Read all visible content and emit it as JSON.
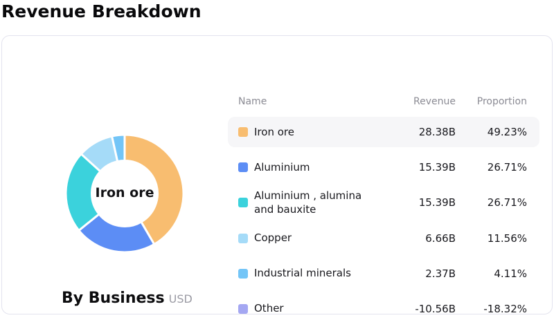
{
  "page": {
    "title": "Revenue Breakdown"
  },
  "card": {
    "center_label": "Iron ore",
    "caption": "By Business",
    "caption_unit": "USD"
  },
  "table": {
    "headers": {
      "name": "Name",
      "revenue": "Revenue",
      "proportion": "Proportion"
    },
    "rows": [
      {
        "name": "Iron ore",
        "revenue": "28.38B",
        "proportion": "49.23%",
        "color": "#F8BD70",
        "highlighted": true
      },
      {
        "name": "Aluminium",
        "revenue": "15.39B",
        "proportion": "26.71%",
        "color": "#5C8DF5",
        "highlighted": false
      },
      {
        "name": "Aluminium , alumina and bauxite",
        "revenue": "15.39B",
        "proportion": "26.71%",
        "color": "#3BD2DC",
        "highlighted": false
      },
      {
        "name": "Copper",
        "revenue": "6.66B",
        "proportion": "11.56%",
        "color": "#A5DBF8",
        "highlighted": false
      },
      {
        "name": "Industrial minerals",
        "revenue": "2.37B",
        "proportion": "4.11%",
        "color": "#73C5F7",
        "highlighted": false
      },
      {
        "name": "Other",
        "revenue": "-10.56B",
        "proportion": "-18.32%",
        "color": "#A4A7F2",
        "highlighted": false
      }
    ]
  },
  "chart_data": {
    "type": "pie",
    "title": "Revenue Breakdown",
    "subtitle": "By Business",
    "unit": "USD",
    "center_label": "Iron ore",
    "categories": [
      "Iron ore",
      "Aluminium",
      "Aluminium , alumina and bauxite",
      "Copper",
      "Industrial minerals",
      "Other"
    ],
    "revenue_billions": [
      28.38,
      15.39,
      15.39,
      6.66,
      2.37,
      -10.56
    ],
    "proportions_pct": [
      49.23,
      26.71,
      26.71,
      11.56,
      4.11,
      -18.32
    ],
    "colors": [
      "#F8BD70",
      "#5C8DF5",
      "#3BD2DC",
      "#A5DBF8",
      "#73C5F7",
      "#A4A7F2"
    ],
    "layout": {
      "donut": true,
      "inner_radius_ratio": 0.56,
      "start_angle_deg": 0,
      "direction": "clockwise",
      "slice_gap_color": "#ffffff",
      "negative_values_omitted_from_arcs": true,
      "legend_position": "right-table"
    }
  }
}
